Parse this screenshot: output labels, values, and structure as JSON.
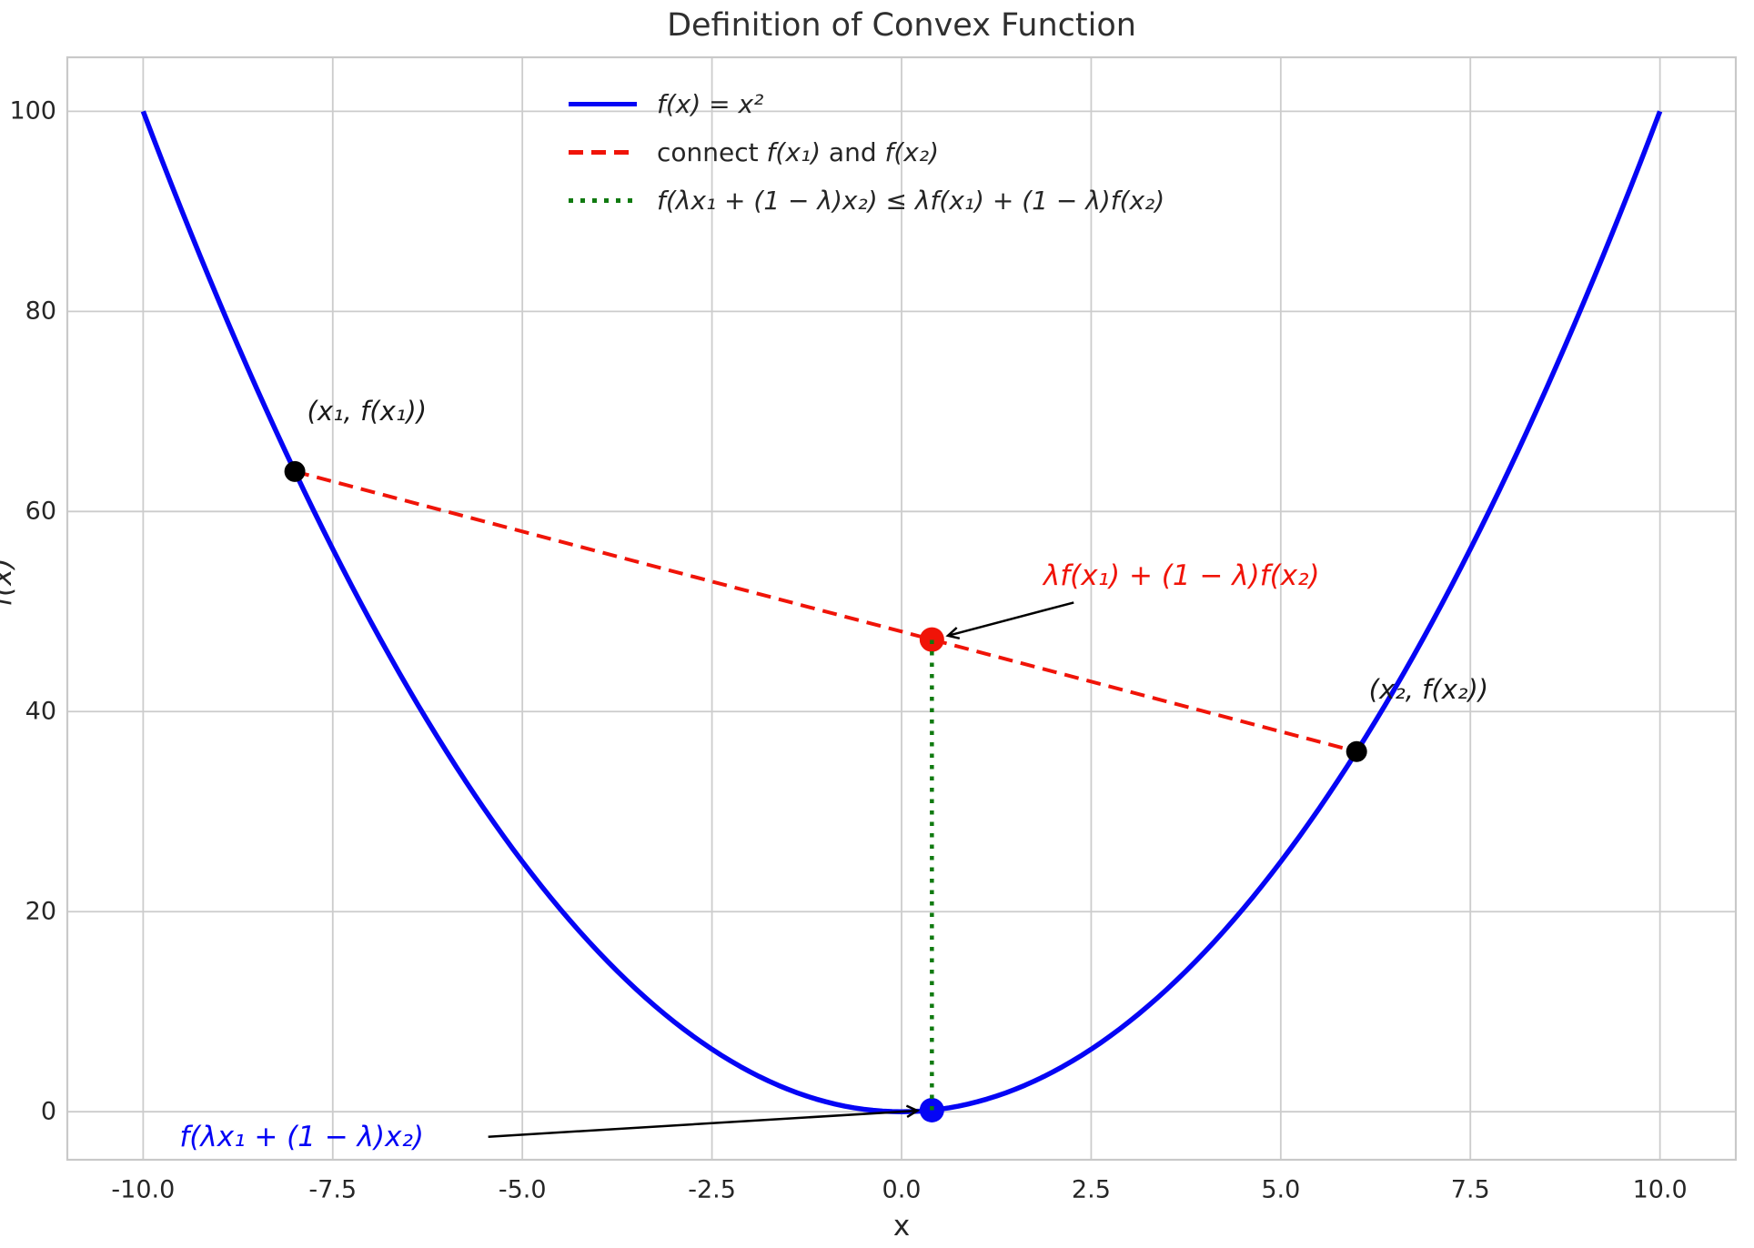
{
  "chart_data": {
    "type": "line",
    "title": "Definition of Convex Function",
    "xlabel": "x",
    "ylabel": "f(x)",
    "xlim": [
      -11,
      11
    ],
    "ylim": [
      -4.8,
      105.4
    ],
    "grid": true,
    "legend_position": "upper center-left",
    "background_color": "#ffffff",
    "grid_color": "#cccccc",
    "spine_color": "#c9c9c9",
    "text_color": "#262626",
    "xticks": {
      "values": [
        -10,
        -7.5,
        -5,
        -2.5,
        0,
        2.5,
        5,
        7.5,
        10
      ],
      "labels": [
        "-10.0",
        "-7.5",
        "-5.0",
        "-2.5",
        "0.0",
        "2.5",
        "5.0",
        "7.5",
        "10.0"
      ]
    },
    "yticks": {
      "values": [
        0,
        20,
        40,
        60,
        80,
        100
      ],
      "labels": [
        "0",
        "20",
        "40",
        "60",
        "80",
        "100"
      ]
    },
    "series": [
      {
        "name": "convex-curve",
        "kind": "function",
        "expr": "x*x",
        "x_min": -10,
        "x_max": 10,
        "samples": 160,
        "color": "#0505f5",
        "width": 5.5,
        "dash": "solid",
        "legend_segments": [
          {
            "t": "f(x) = x²",
            "i": 1
          }
        ]
      },
      {
        "name": "chord-line",
        "kind": "segment",
        "from": [
          -8,
          64
        ],
        "to": [
          6,
          36
        ],
        "color": "#f01408",
        "width": 4,
        "dash": "dashed",
        "legend_segments": [
          {
            "t": "connect ",
            "i": 0
          },
          {
            "t": "f(x₁)",
            "i": 1
          },
          {
            "t": " and ",
            "i": 0
          },
          {
            "t": "f(x₂)",
            "i": 1
          }
        ]
      },
      {
        "name": "convexity-gap-line",
        "kind": "segment",
        "from": [
          0.4,
          0.16
        ],
        "to": [
          0.4,
          47.2
        ],
        "color": "#107a10",
        "width": 4.5,
        "dash": "dotted",
        "legend_segments": [
          {
            "t": "f(λx₁ + (1 − λ)x₂) ≤ λf(x₁) + (1 − λ)f(x₂)",
            "i": 1
          }
        ]
      }
    ],
    "points": [
      {
        "name": "point-x1",
        "x": -8,
        "y": 64,
        "color": "#000000",
        "r": 11.5
      },
      {
        "name": "point-x2",
        "x": 6,
        "y": 36,
        "color": "#000000",
        "r": 11.5
      },
      {
        "name": "point-chord-value",
        "x": 0.4,
        "y": 47.2,
        "color": "#f01408",
        "r": 13.5
      },
      {
        "name": "point-function-value",
        "x": 0.4,
        "y": 0.16,
        "color": "#0505f5",
        "r": 13.5
      }
    ],
    "annotations": [
      {
        "name": "label-point-x1",
        "segments": [
          {
            "t": "(x₁, f(x₁))",
            "i": 1
          }
        ],
        "color": "#1a1a1a",
        "x": -7.05,
        "y": 70.0,
        "align": "center",
        "size": 29
      },
      {
        "name": "label-point-x2",
        "segments": [
          {
            "t": "(x₂, f(x₂))",
            "i": 1
          }
        ],
        "color": "#1a1a1a",
        "x": 6.95,
        "y": 42.2,
        "align": "center",
        "size": 29
      },
      {
        "name": "label-chord-value",
        "segments": [
          {
            "t": "λf(x₁) + (1 − λ)f(x₂)",
            "i": 1
          }
        ],
        "color": "#f01408",
        "x": 1.87,
        "y": 53.6,
        "align": "left",
        "size": 31
      },
      {
        "name": "label-function-value",
        "segments": [
          {
            "t": "f(λx₁ + (1 − λ)x₂)",
            "i": 1
          }
        ],
        "color": "#0505f5",
        "x": -9.52,
        "y": -2.55,
        "align": "left",
        "size": 31
      }
    ],
    "arrows": [
      {
        "name": "arrow-to-chord-point",
        "from": [
          2.27,
          50.9
        ],
        "to": [
          0.62,
          47.6
        ],
        "color": "#000000",
        "width": 2.5
      },
      {
        "name": "arrow-to-function-point",
        "from": [
          -5.45,
          -2.5
        ],
        "to": [
          0.2,
          0.1
        ],
        "color": "#000000",
        "width": 2.5
      }
    ],
    "lambda_value": 0.4
  }
}
